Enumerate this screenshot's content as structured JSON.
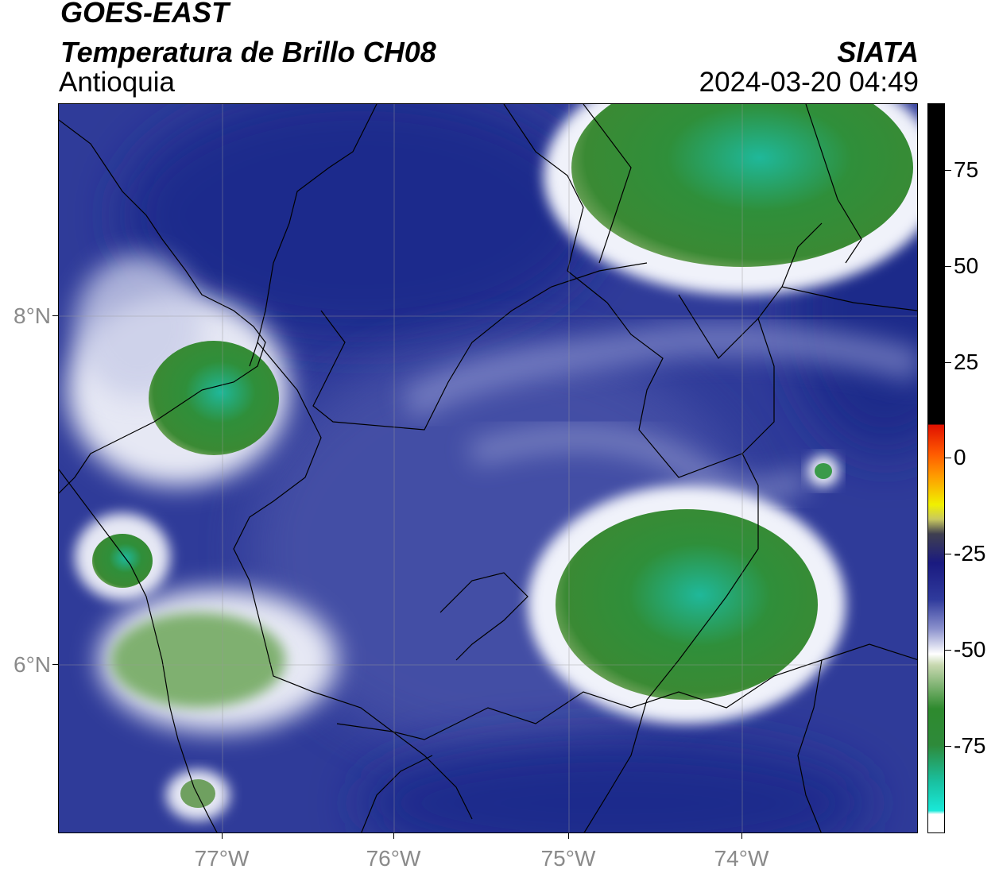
{
  "header": {
    "satellite": "GOES-EAST",
    "product": "Temperatura de Brillo CH08",
    "region": "Antioquia",
    "organization": "SIATA",
    "datetime": "2024-03-20 04:49"
  },
  "map": {
    "lat_labels": [
      "8°N",
      "6°N"
    ],
    "lon_labels": [
      "77°W",
      "76°W",
      "75°W",
      "74°W"
    ]
  },
  "colorbar": {
    "tick_labels": [
      "75",
      "50",
      "25",
      "0",
      "-25",
      "-50",
      "-75"
    ],
    "colors": {
      "warm": "#000000",
      "red": "#e01000",
      "yellow": "#f0f000",
      "navy": "#1a1a80",
      "white": "#ffffff",
      "green": "#2e8a2e",
      "cyan": "#19e0d0"
    }
  }
}
